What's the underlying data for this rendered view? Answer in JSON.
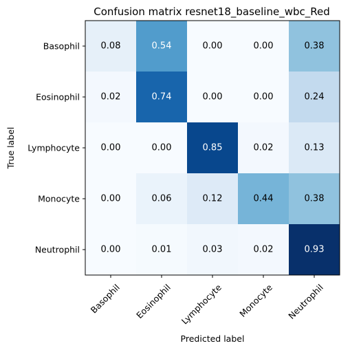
{
  "chart_data": {
    "type": "heatmap",
    "title": "Confusion matrix resnet18_baseline_wbc_Red",
    "xlabel": "Predicted label",
    "ylabel": "True label",
    "x_categories": [
      "Basophil",
      "Eosinophil",
      "Lymphocyte",
      "Monocyte",
      "Neutrophil"
    ],
    "y_categories": [
      "Basophil",
      "Eosinophil",
      "Lymphocyte",
      "Monocyte",
      "Neutrophil"
    ],
    "values": [
      [
        0.08,
        0.54,
        0.0,
        0.0,
        0.38
      ],
      [
        0.02,
        0.74,
        0.0,
        0.0,
        0.24
      ],
      [
        0.0,
        0.0,
        0.85,
        0.02,
        0.13
      ],
      [
        0.0,
        0.06,
        0.12,
        0.44,
        0.38
      ],
      [
        0.0,
        0.01,
        0.03,
        0.02,
        0.93
      ]
    ],
    "value_format": "2 decimals",
    "colormap": "Blues",
    "color_range": [
      0.0,
      0.93
    ],
    "colorbar": false,
    "grid": false
  }
}
